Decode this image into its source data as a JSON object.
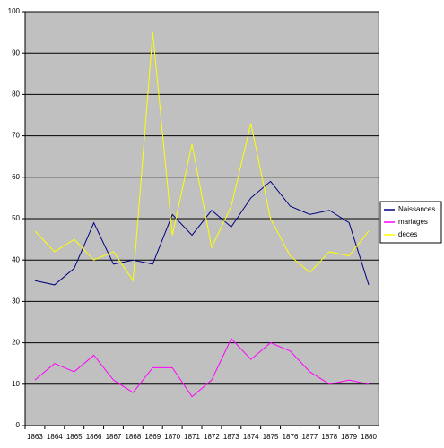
{
  "chart_data": {
    "type": "line",
    "categories": [
      "1863",
      "1864",
      "1865",
      "1866",
      "1867",
      "1868",
      "1869",
      "1870",
      "1871",
      "1872",
      "1873",
      "1874",
      "1875",
      "1876",
      "1877",
      "1878",
      "1879",
      "1880"
    ],
    "series": [
      {
        "name": "Naissances",
        "color": "#000080",
        "values": [
          35,
          34,
          38,
          49,
          39,
          40,
          39,
          51,
          46,
          52,
          48,
          55,
          59,
          53,
          51,
          52,
          49,
          34
        ]
      },
      {
        "name": "mariages",
        "color": "#ff00ff",
        "values": [
          11,
          15,
          13,
          17,
          11,
          8,
          14,
          14,
          7,
          11,
          21,
          16,
          20,
          18,
          13,
          10,
          11,
          10
        ]
      },
      {
        "name": "deces",
        "color": "#ffff00",
        "values": [
          47,
          42,
          45,
          40,
          42,
          35,
          95,
          46,
          68,
          43,
          53,
          73,
          50,
          41,
          37,
          42,
          41,
          47
        ]
      }
    ],
    "ylim": [
      0,
      100
    ],
    "yticks": [
      0,
      10,
      20,
      30,
      40,
      50,
      60,
      70,
      80,
      90,
      100
    ],
    "grid": true,
    "legend": "right"
  }
}
